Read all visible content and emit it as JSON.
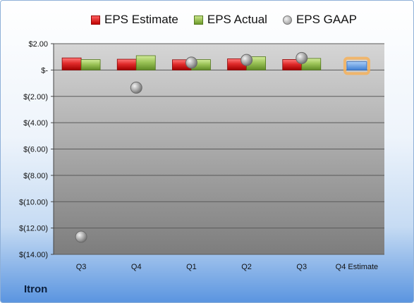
{
  "company": "Itron",
  "chart_data": {
    "type": "bar",
    "categories": [
      "Q3",
      "Q4",
      "Q1",
      "Q2",
      "Q3",
      "Q4 Estimate"
    ],
    "series": [
      {
        "name": "EPS Estimate",
        "values": [
          0.92,
          0.82,
          0.78,
          0.85,
          0.8,
          null
        ],
        "color": "#d42020"
      },
      {
        "name": "EPS Actual",
        "values": [
          0.79,
          1.09,
          0.79,
          1.01,
          0.88,
          null
        ],
        "color": "#8ab448"
      },
      {
        "name": "EPS GAAP",
        "type": "scatter",
        "values": [
          -12.66,
          -1.34,
          0.56,
          0.76,
          0.91,
          null
        ],
        "color": "#a0a0a0"
      },
      {
        "name": "Q4 Estimate",
        "values": [
          null,
          null,
          null,
          null,
          null,
          0.63
        ],
        "color": "#6aa3e8",
        "highlight": "#f6b25a",
        "in_legend": false
      }
    ],
    "y_ticks": [
      "$2.00",
      "$-",
      "$(2.00)",
      "$(4.00)",
      "$(6.00)",
      "$(8.00)",
      "$(10.00)",
      "$(12.00)",
      "$(14.00)"
    ],
    "y_tick_values": [
      2,
      0,
      -2,
      -4,
      -6,
      -8,
      -10,
      -12,
      -14
    ],
    "ylim": [
      -14,
      2
    ],
    "grid": true,
    "legend_position": "top"
  }
}
